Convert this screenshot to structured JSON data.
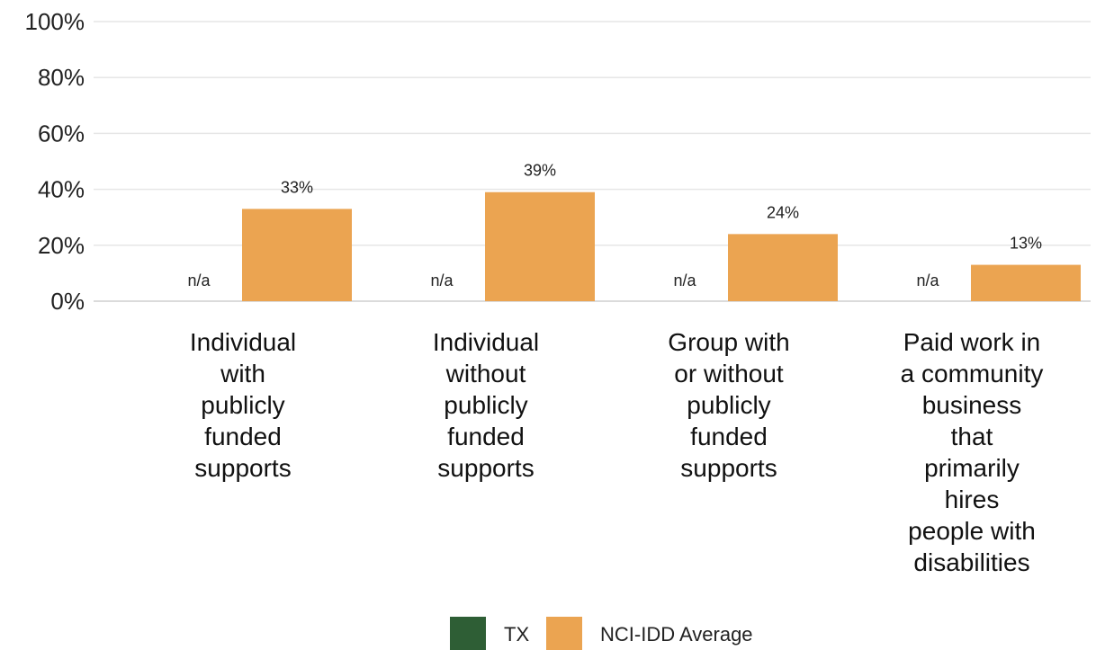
{
  "chart_data": {
    "type": "bar",
    "title": "",
    "xlabel": "",
    "ylabel": "",
    "ylim": [
      0,
      100
    ],
    "yticks": [
      "0%",
      "20%",
      "40%",
      "60%",
      "80%",
      "100%"
    ],
    "grid": true,
    "legend_position": "bottom",
    "categories": [
      [
        "Individual",
        "with",
        "publicly",
        "funded",
        "supports"
      ],
      [
        "Individual",
        "without",
        "publicly",
        "funded",
        "supports"
      ],
      [
        "Group with",
        "or without",
        "publicly",
        "funded",
        "supports"
      ],
      [
        "Paid work in",
        "a community",
        "business",
        "that",
        "primarily",
        "hires",
        "people with",
        "disabilities"
      ]
    ],
    "series": [
      {
        "name": "TX",
        "color": "#2e5e35",
        "values": [
          null,
          null,
          null,
          null
        ],
        "labels": [
          "n/a",
          "n/a",
          "n/a",
          "n/a"
        ]
      },
      {
        "name": "NCI-IDD Average",
        "color": "#eba451",
        "values": [
          33,
          39,
          24,
          13
        ],
        "labels": [
          "33%",
          "39%",
          "24%",
          "13%"
        ]
      }
    ]
  }
}
